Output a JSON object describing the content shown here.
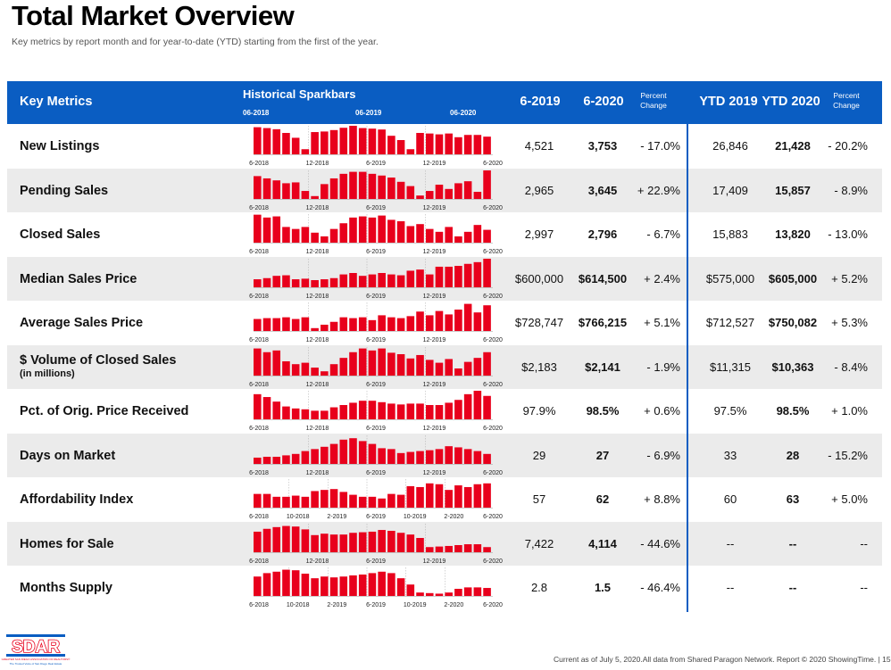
{
  "title": "Total Market Overview",
  "subtitle": "Key metrics by report month and for year-to-date (YTD) starting from the first of the year.",
  "header": {
    "key_metrics": "Key Metrics",
    "sparkbars": "Historical Sparkbars",
    "spark_start": "06-2018",
    "spark_mid": "06-2019",
    "spark_end": "06-2020",
    "col_6_2019": "6-2019",
    "col_6_2020": "6-2020",
    "pct_change_line1": "Percent",
    "pct_change_line2": "Change",
    "col_ytd_2019": "YTD 2019",
    "col_ytd_2020": "YTD 2020",
    "ytd_pct_change_line1": "Percent",
    "ytd_pct_change_line2": "Change"
  },
  "bar_color": "#e8001c",
  "header_color": "#0a5dc2",
  "axis_labels_default": [
    "6-2018",
    "12-2018",
    "6-2019",
    "12-2019",
    "6-2020"
  ],
  "axis_labels_alt": [
    "6-2018",
    "10-2018",
    "2-2019",
    "6-2019",
    "10-2019",
    "2-2020",
    "6-2020"
  ],
  "rows": [
    {
      "metric": "New Listings",
      "v2019": "4,521",
      "v2020": "3,753",
      "pct": "- 17.0%",
      "ytd2019": "26,846",
      "ytd2020": "21,428",
      "ytd_pct": "- 20.2%",
      "bars": [
        95,
        92,
        88,
        75,
        58,
        18,
        78,
        80,
        85,
        93,
        100,
        92,
        90,
        87,
        65,
        50,
        18,
        75,
        73,
        70,
        73,
        60,
        68,
        68,
        62
      ]
    },
    {
      "metric": "Pending Sales",
      "v2019": "2,965",
      "v2020": "3,645",
      "pct": "+ 22.9%",
      "ytd2019": "17,409",
      "ytd2020": "15,857",
      "ytd_pct": "- 8.9%",
      "bars": [
        80,
        72,
        65,
        55,
        58,
        28,
        10,
        52,
        72,
        88,
        95,
        95,
        88,
        82,
        75,
        60,
        45,
        12,
        28,
        50,
        35,
        55,
        62,
        25,
        100
      ]
    },
    {
      "metric": "Closed Sales",
      "v2019": "2,997",
      "v2020": "2,796",
      "pct": "- 6.7%",
      "ytd2019": "15,883",
      "ytd2020": "13,820",
      "ytd_pct": "- 13.0%",
      "bars": [
        98,
        88,
        92,
        55,
        48,
        55,
        35,
        22,
        48,
        68,
        88,
        92,
        88,
        95,
        80,
        75,
        58,
        65,
        48,
        38,
        55,
        22,
        38,
        62,
        45
      ]
    },
    {
      "metric": "Median Sales Price",
      "v2019": "$600,000",
      "v2020": "$614,500",
      "pct": "+ 2.4%",
      "ytd2019": "$575,000",
      "ytd2020": "$605,000",
      "ytd_pct": "+ 5.2%",
      "bars": [
        28,
        32,
        40,
        42,
        28,
        30,
        25,
        28,
        32,
        45,
        50,
        40,
        45,
        50,
        45,
        42,
        58,
        62,
        45,
        72,
        72,
        75,
        82,
        88,
        100
      ]
    },
    {
      "metric": "Average Sales Price",
      "v2019": "$728,747",
      "v2020": "$766,215",
      "pct": "+ 5.1%",
      "ytd2019": "$712,527",
      "ytd2020": "$750,082",
      "ytd_pct": "+ 5.3%",
      "bars": [
        42,
        45,
        45,
        48,
        42,
        48,
        10,
        22,
        32,
        48,
        45,
        48,
        38,
        55,
        48,
        45,
        52,
        68,
        55,
        70,
        58,
        75,
        95,
        65,
        90
      ]
    },
    {
      "metric": "$ Volume of Closed Sales",
      "metric_sub": "(in millions)",
      "v2019": "$2,183",
      "v2020": "$2,141",
      "pct": "- 1.9%",
      "ytd2019": "$11,315",
      "ytd2020": "$10,363",
      "ytd_pct": "- 8.4%",
      "bars": [
        95,
        82,
        88,
        50,
        40,
        45,
        28,
        15,
        40,
        62,
        82,
        95,
        88,
        95,
        80,
        75,
        60,
        72,
        55,
        45,
        58,
        25,
        48,
        62,
        82
      ]
    },
    {
      "metric": "Pct. of Orig. Price Received",
      "v2019": "97.9%",
      "v2020": "98.5%",
      "pct": "+ 0.6%",
      "ytd2019": "97.5%",
      "ytd2020": "98.5%",
      "ytd_pct": "+ 1.0%",
      "bars": [
        88,
        78,
        62,
        45,
        38,
        35,
        30,
        30,
        42,
        50,
        58,
        65,
        65,
        60,
        55,
        52,
        55,
        55,
        50,
        50,
        58,
        68,
        88,
        100,
        82
      ]
    },
    {
      "metric": "Days on Market",
      "v2019": "29",
      "v2020": "27",
      "pct": "- 6.9%",
      "ytd2019": "33",
      "ytd2020": "28",
      "ytd_pct": "- 15.2%",
      "bars": [
        22,
        25,
        25,
        30,
        35,
        45,
        52,
        60,
        70,
        85,
        90,
        80,
        70,
        55,
        52,
        38,
        42,
        45,
        48,
        52,
        62,
        58,
        52,
        45,
        35
      ]
    },
    {
      "metric": "Affordability Index",
      "v2019": "57",
      "v2020": "62",
      "pct": "+ 8.8%",
      "ytd2019": "60",
      "ytd2020": "63",
      "ytd_pct": "+ 5.0%",
      "bars": [
        48,
        48,
        38,
        38,
        42,
        38,
        58,
        62,
        65,
        55,
        45,
        38,
        38,
        32,
        48,
        45,
        75,
        72,
        85,
        82,
        62,
        78,
        72,
        82,
        85
      ]
    },
    {
      "metric": "Homes for Sale",
      "v2019": "7,422",
      "v2020": "4,114",
      "pct": "- 44.6%",
      "ytd2019": "--",
      "ytd2020": "--",
      "ytd_pct": "--",
      "bars": [
        72,
        82,
        88,
        92,
        90,
        80,
        60,
        65,
        62,
        62,
        68,
        70,
        72,
        78,
        75,
        68,
        62,
        50,
        18,
        20,
        22,
        25,
        28,
        28,
        18
      ]
    },
    {
      "metric": "Months Supply",
      "v2019": "2.8",
      "v2020": "1.5",
      "pct": "- 46.4%",
      "ytd2019": "--",
      "ytd2020": "--",
      "ytd_pct": "--",
      "bars": [
        68,
        80,
        85,
        92,
        90,
        78,
        62,
        68,
        65,
        68,
        72,
        75,
        80,
        85,
        80,
        62,
        40,
        12,
        10,
        8,
        12,
        25,
        30,
        30,
        28
      ]
    }
  ],
  "footer": "Current as of July 5, 2020.All data from Shared Paragon Network. Report © 2020 ShowingTime.  |  15",
  "logo": {
    "name": "SDAR",
    "tagline": "GREATER SAN DIEGO ASSOCIATION OF REALTORS®",
    "slogan": "The Trusted Voice of San Diego Real Estate"
  }
}
